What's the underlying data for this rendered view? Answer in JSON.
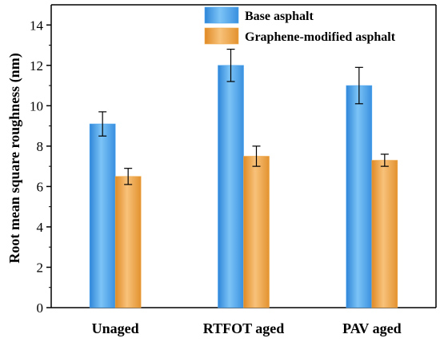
{
  "chart_data": {
    "type": "bar",
    "title": "",
    "xlabel": "",
    "ylabel": "Root mean square roughness (nm)",
    "categories": [
      "Unaged",
      "RTFOT aged",
      "PAV aged"
    ],
    "series": [
      {
        "name": "Base asphalt",
        "values": [
          9.1,
          12.0,
          11.0
        ],
        "errors": [
          0.6,
          0.8,
          0.9
        ],
        "color": "#4da6f0"
      },
      {
        "name": "Graphene-modified asphalt",
        "values": [
          6.5,
          7.5,
          7.3
        ],
        "errors": [
          0.4,
          0.5,
          0.3
        ],
        "color": "#f0a94a"
      }
    ],
    "ylim": [
      0,
      15
    ],
    "yticks": [
      0,
      2,
      4,
      6,
      8,
      10,
      12,
      14
    ],
    "grid": false,
    "legend_position": "top-right"
  }
}
